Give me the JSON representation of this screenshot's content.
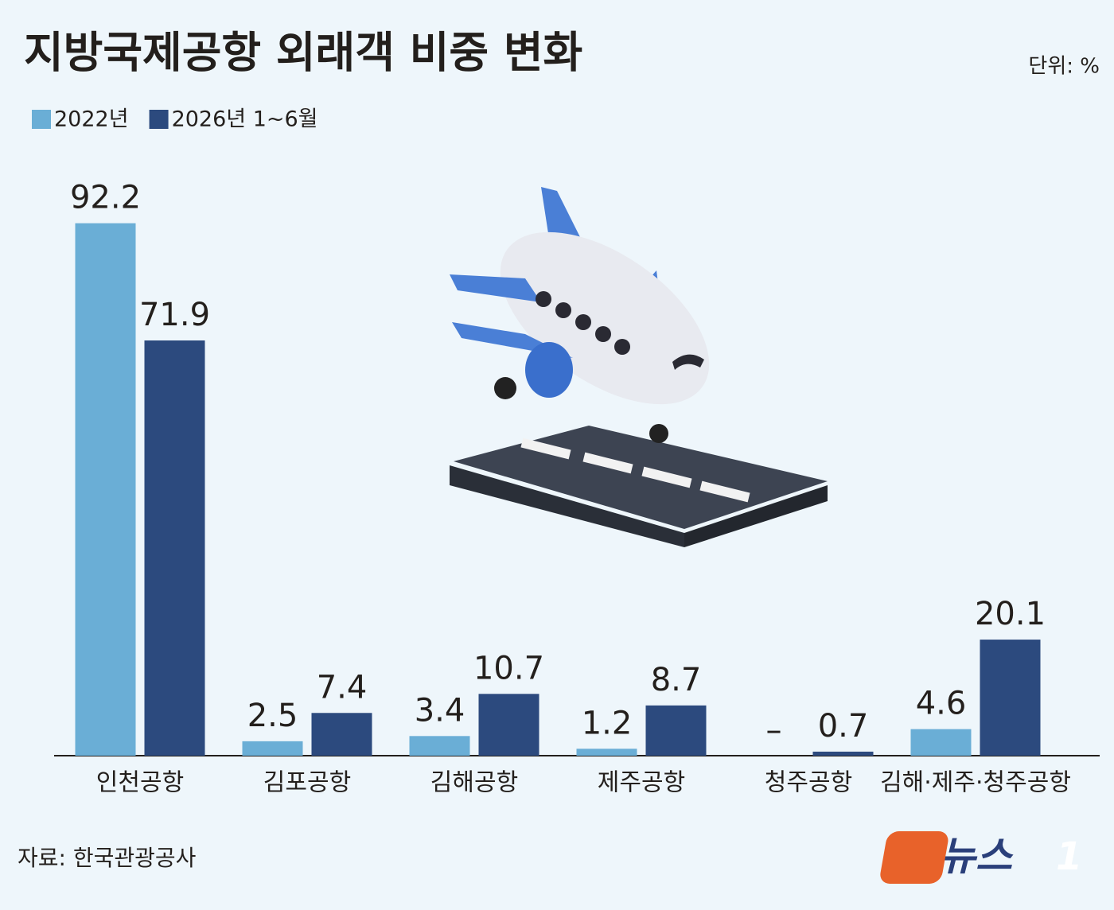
{
  "chart_data": {
    "type": "bar",
    "title": "지방국제공항 외래객 비중 변화",
    "unit": "단위: %",
    "source": "자료: 한국관광공사",
    "categories": [
      "인천공항",
      "김포공항",
      "김해공항",
      "제주공항",
      "청주공항",
      "김해·제주·청주공항"
    ],
    "series": [
      {
        "name": "2022년",
        "color": "#6aaed6",
        "values": [
          92.2,
          2.5,
          3.4,
          1.2,
          null,
          4.6
        ],
        "value_labels": [
          "92.2",
          "2.5",
          "3.4",
          "1.2",
          "–",
          "4.6"
        ]
      },
      {
        "name": "2026년 1~6월",
        "color": "#2c4a7e",
        "values": [
          71.9,
          7.4,
          10.7,
          8.7,
          0.7,
          20.1
        ]
      }
    ],
    "ylim": [
      0,
      100
    ]
  },
  "branding": {
    "text": "뉴스",
    "mark": "1"
  }
}
